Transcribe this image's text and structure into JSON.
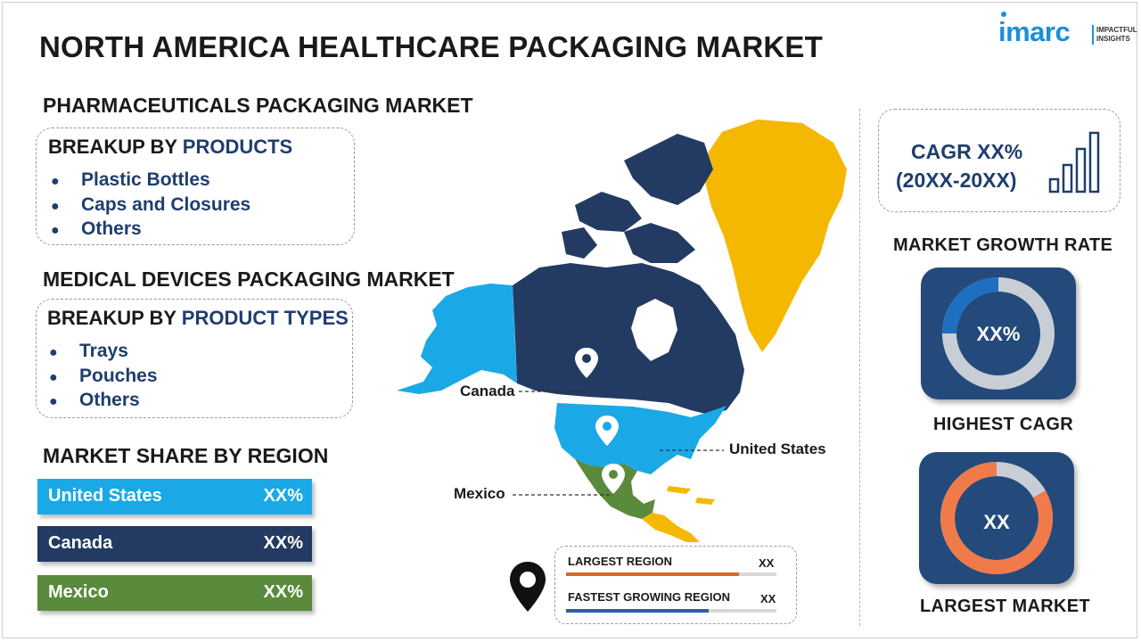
{
  "title": "NORTH AMERICA HEALTHCARE PACKAGING MARKET",
  "logo": {
    "brand": "imarc",
    "tagline_line1": "IMPACTFUL",
    "tagline_line2": "INSIGHTS"
  },
  "pharma": {
    "title": "PHARMACEUTICALS PACKAGING MARKET",
    "breakup_prefix": "BREAKUP BY ",
    "breakup_highlight": "PRODUCTS",
    "items": [
      "Plastic Bottles",
      "Caps and Closures",
      "Others"
    ]
  },
  "devices": {
    "title": "MEDICAL DEVICES PACKAGING MARKET",
    "breakup_prefix": "BREAKUP BY ",
    "breakup_highlight": "PRODUCT TYPES",
    "items": [
      "Trays",
      "Pouches",
      "Others"
    ]
  },
  "region_share": {
    "title": "MARKET SHARE BY REGION",
    "bars": [
      {
        "name": "United States",
        "value": "XX%",
        "color": "#1aa9e6"
      },
      {
        "name": "Canada",
        "value": "XX%",
        "color": "#233b62"
      },
      {
        "name": "Mexico",
        "value": "XX%",
        "color": "#5a8a3c"
      }
    ]
  },
  "map": {
    "labels": {
      "canada": "Canada",
      "us": "United States",
      "mexico": "Mexico"
    },
    "colors": {
      "canada": "#233b62",
      "alaska": "#1aa9e6",
      "us": "#1aa9e6",
      "greenland": "#f5b800",
      "mexico": "#5a8a3c",
      "central": "#f5b800"
    }
  },
  "legend": {
    "largest_label": "LARGEST REGION",
    "largest_value": "XX",
    "largest_color": "#d36a2c",
    "fastest_label": "FASTEST GROWING REGION",
    "fastest_value": "XX",
    "fastest_color": "#2e5ea8"
  },
  "cagr": {
    "line1": "CAGR XX%",
    "line2": "(20XX-20XX)"
  },
  "growth": {
    "title": "MARKET GROWTH RATE",
    "value": "XX%",
    "caption": "HIGHEST CAGR",
    "ring_color": "#1e6fc2"
  },
  "largest_market": {
    "value": "XX",
    "caption": "LARGEST MARKET",
    "ring_color": "#f07a4a"
  }
}
